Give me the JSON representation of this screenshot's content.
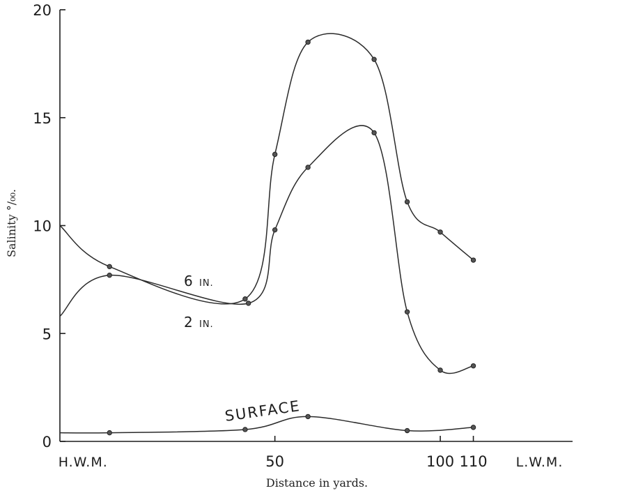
{
  "chart_data": {
    "type": "line",
    "xlabel": "Distance in yards.",
    "ylabel": "Salinity °/₀₀.",
    "xlim": [
      -15,
      140
    ],
    "ylim": [
      0,
      20
    ],
    "y_ticks": [
      "0",
      "5",
      "10",
      "15",
      "20"
    ],
    "x_tick_labels": [
      {
        "value": -8,
        "text": "H.W.M."
      },
      {
        "value": 50,
        "text": "50"
      },
      {
        "value": 100,
        "text": "100"
      },
      {
        "value": 110,
        "text": "110"
      },
      {
        "value": 130,
        "text": "L.W.M."
      }
    ],
    "grid": false,
    "series": [
      {
        "name": "6 IN.",
        "label_main": "6",
        "label_unit": "IN.",
        "start": {
          "x": -15,
          "y": 10.0
        },
        "points": [
          [
            0,
            8.1
          ],
          [
            41,
            6.6
          ],
          [
            50,
            13.3
          ],
          [
            60,
            18.5
          ],
          [
            80,
            17.7
          ],
          [
            90,
            11.1
          ],
          [
            100,
            9.7
          ],
          [
            110,
            8.4
          ]
        ]
      },
      {
        "name": "2 IN.",
        "label_main": "2",
        "label_unit": "IN.",
        "start": {
          "x": -15,
          "y": 5.8
        },
        "points": [
          [
            0,
            7.7
          ],
          [
            42,
            6.4
          ],
          [
            50,
            9.8
          ],
          [
            60,
            12.7
          ],
          [
            80,
            14.3
          ],
          [
            90,
            6.0
          ],
          [
            100,
            3.3
          ],
          [
            110,
            3.5
          ]
        ]
      },
      {
        "name": "SURFACE",
        "start": {
          "x": -15,
          "y": 0.4
        },
        "points": [
          [
            0,
            0.4
          ],
          [
            41,
            0.55
          ],
          [
            60,
            1.15
          ],
          [
            90,
            0.5
          ],
          [
            110,
            0.65
          ]
        ]
      }
    ]
  }
}
